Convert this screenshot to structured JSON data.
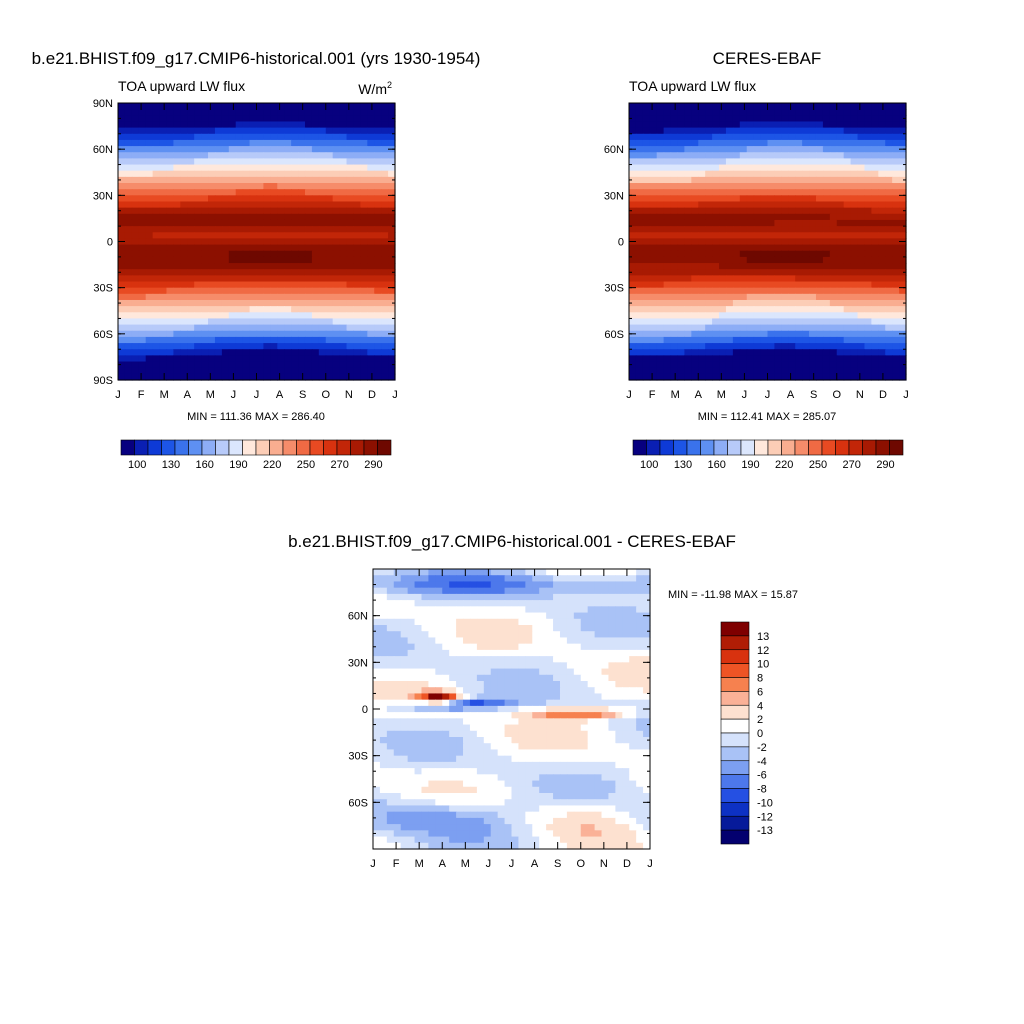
{
  "chart_data": [
    {
      "type": "heatmap",
      "title": "b.e21.BHIST.f09_g17.CMIP6-historical.001 (yrs 1930-1954)",
      "subtitle_left": "TOA upward LW flux",
      "units_base": "W/m",
      "units_exp": "2",
      "stats": "MIN = 111.36 MAX = 286.40",
      "x_tick_labels": [
        "J",
        "F",
        "M",
        "A",
        "M",
        "J",
        "J",
        "A",
        "S",
        "O",
        "N",
        "D",
        "J"
      ],
      "y_tick_labels": [
        "90N",
        "60N",
        "30N",
        "0",
        "30S",
        "60S",
        "90S"
      ],
      "y_tick_values": [
        90,
        60,
        30,
        0,
        -30,
        -60,
        -90
      ],
      "ylim": [
        -90,
        90
      ],
      "colorbar": {
        "orientation": "horizontal",
        "levels": [
          100,
          110,
          120,
          130,
          140,
          150,
          160,
          170,
          180,
          190,
          200,
          210,
          220,
          230,
          240,
          250,
          260,
          270,
          280,
          290
        ],
        "labels": [
          "100",
          "130",
          "160",
          "190",
          "220",
          "250",
          "270",
          "290"
        ]
      },
      "field": "abs_model"
    },
    {
      "type": "heatmap",
      "title": "CERES-EBAF",
      "subtitle_left": "TOA upward LW flux",
      "stats": "MIN = 112.41 MAX = 285.07",
      "x_tick_labels": [
        "J",
        "F",
        "M",
        "A",
        "M",
        "J",
        "J",
        "A",
        "S",
        "O",
        "N",
        "D",
        "J"
      ],
      "y_tick_labels": [
        "60N",
        "30N",
        "0",
        "30S",
        "60S"
      ],
      "y_tick_values": [
        60,
        30,
        0,
        -30,
        -60
      ],
      "ylim": [
        -90,
        90
      ],
      "colorbar": {
        "orientation": "horizontal",
        "levels": [
          100,
          110,
          120,
          130,
          140,
          150,
          160,
          170,
          180,
          190,
          200,
          210,
          220,
          230,
          240,
          250,
          260,
          270,
          280,
          290
        ],
        "labels": [
          "100",
          "130",
          "160",
          "190",
          "220",
          "250",
          "270",
          "290"
        ]
      },
      "field": "abs_obs"
    },
    {
      "type": "heatmap",
      "title": "b.e21.BHIST.f09_g17.CMIP6-historical.001 - CERES-EBAF",
      "stats": "MIN = -11.98 MAX =  15.87",
      "x_tick_labels": [
        "J",
        "F",
        "M",
        "A",
        "M",
        "J",
        "J",
        "A",
        "S",
        "O",
        "N",
        "D",
        "J"
      ],
      "y_tick_labels": [
        "60N",
        "30N",
        "0",
        "30S",
        "60S"
      ],
      "y_tick_values": [
        60,
        30,
        0,
        -30,
        -60
      ],
      "ylim": [
        -90,
        90
      ],
      "colorbar": {
        "orientation": "vertical",
        "labels": [
          "13",
          "12",
          "10",
          "8",
          "6",
          "4",
          "2",
          "0",
          "-2",
          "-4",
          "-6",
          "-8",
          "-10",
          "-12",
          "-13"
        ]
      },
      "field": "diff"
    }
  ],
  "colors": {
    "abs_palette": [
      "#07007f",
      "#0a1fb3",
      "#0e3ad6",
      "#1d55e6",
      "#3a72ec",
      "#5e90f2",
      "#8dadf6",
      "#b7caf9",
      "#dbe6fd",
      "#ffe8dc",
      "#fccdb6",
      "#f9ad90",
      "#f68c6a",
      "#f06a44",
      "#e84a22",
      "#d8320f",
      "#c22608",
      "#a81a03",
      "#8c1000",
      "#6e0800"
    ],
    "diff_palette": [
      "#7f0000",
      "#b01d05",
      "#d8320f",
      "#ee5425",
      "#f6814f",
      "#fab197",
      "#fde1d0",
      "#ffffff",
      "#d5e2fb",
      "#a9c2f6",
      "#7c9ff1",
      "#4d78eb",
      "#2550e3",
      "#0d31c4",
      "#061a9a",
      "#03006f"
    ]
  }
}
